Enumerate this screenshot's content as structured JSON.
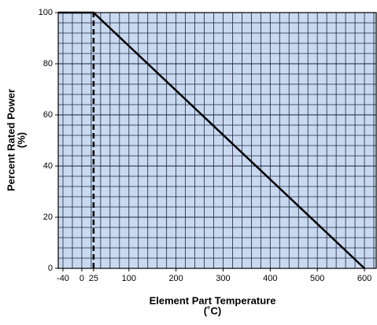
{
  "chart_data": {
    "type": "line",
    "xlabel": [
      "Element Part Temperature",
      "(˚C)"
    ],
    "ylabel": [
      "Percent Rated Power",
      "(%)"
    ],
    "xlim": [
      -50,
      625
    ],
    "ylim": [
      0,
      100
    ],
    "xticks": [
      -40,
      0,
      25,
      100,
      200,
      300,
      400,
      500,
      600
    ],
    "yticks": [
      0,
      20,
      40,
      60,
      80,
      100
    ],
    "grid": true,
    "background": "#c9daf0",
    "series": [
      {
        "x": [
          -50,
          25,
          600
        ],
        "values": [
          100,
          100,
          0
        ],
        "color": "#000000",
        "dashed": false
      },
      {
        "x": [
          25,
          25
        ],
        "values": [
          0,
          100
        ],
        "color": "#000000",
        "dashed": true
      }
    ]
  }
}
